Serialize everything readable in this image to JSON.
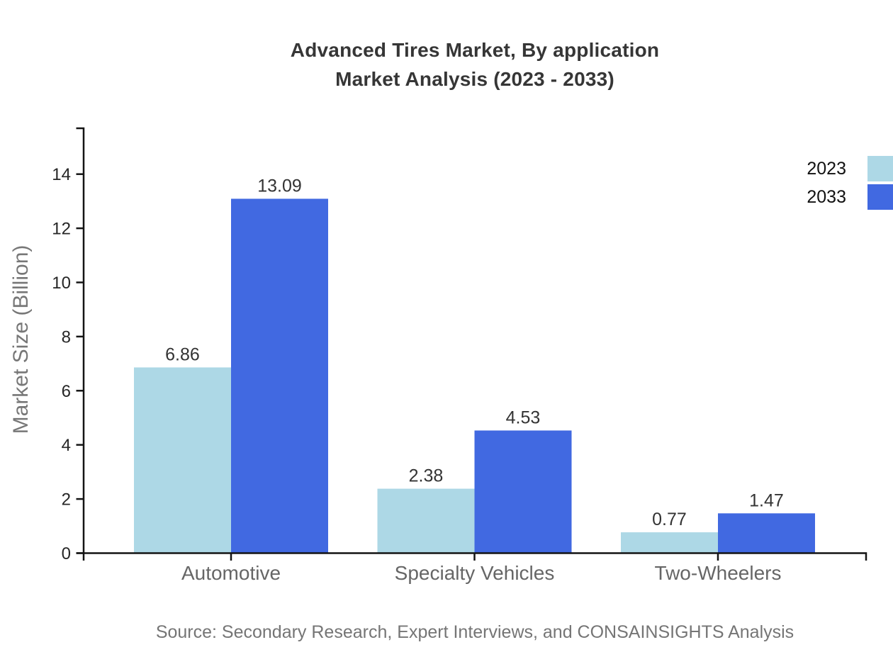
{
  "title": {
    "line1": "Advanced Tires Market, By application",
    "line2": "Market Analysis (2023 - 2033)"
  },
  "footer": {
    "source": "Source: Secondary Research, Expert Interviews, and CONSAINSIGHTS Analysis"
  },
  "chart_data": {
    "type": "bar",
    "title": "Advanced Tires Market, By application Market Analysis (2023 - 2033)",
    "categories": [
      "Automotive",
      "Specialty Vehicles",
      "Two-Wheelers"
    ],
    "series": [
      {
        "name": "2023",
        "color": "#ADD8E6",
        "values": [
          6.86,
          2.38,
          0.77
        ]
      },
      {
        "name": "2033",
        "color": "#4169E1",
        "values": [
          13.09,
          4.53,
          1.47
        ]
      }
    ],
    "xlabel": "",
    "ylabel": "Market Size (Billion)",
    "ylim": [
      0,
      15.7
    ],
    "yticks": [
      0,
      2,
      4,
      6,
      8,
      10,
      12,
      14
    ],
    "grid": false,
    "legend_position": "top-right",
    "value_labels": true,
    "colors": {
      "axis": "#141414",
      "tick_label": "#262626",
      "category_label": "#666666",
      "value_label": "#333333",
      "title": "#363636",
      "source": "#757575",
      "y_title": "#777777"
    }
  }
}
